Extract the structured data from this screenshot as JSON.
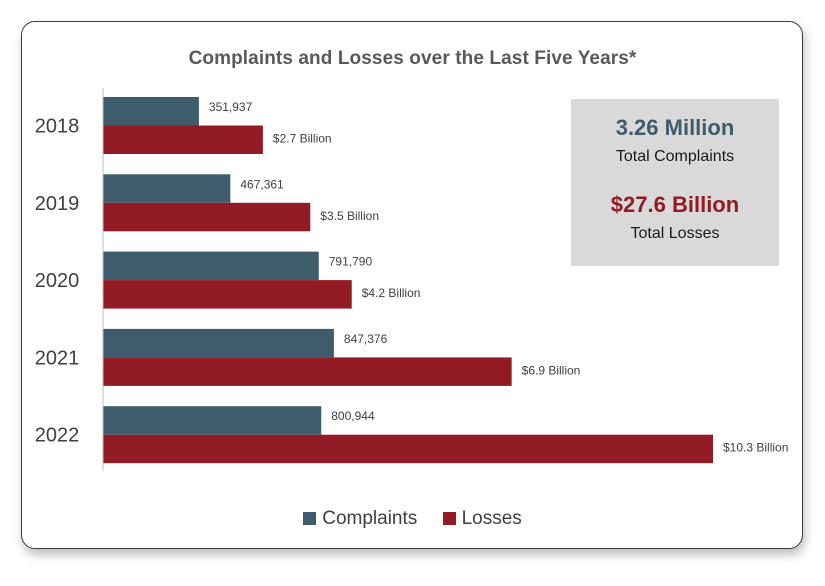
{
  "chart_data": {
    "type": "bar",
    "orientation": "horizontal",
    "title": "Complaints and Losses over the Last Five Years*",
    "categories": [
      "2018",
      "2019",
      "2020",
      "2021",
      "2022"
    ],
    "series": [
      {
        "name": "Complaints",
        "color": "#3e5c6b",
        "values": [
          351937,
          467361,
          791790,
          847376,
          800944
        ],
        "labels": [
          "351,937",
          "467,361",
          "791,790",
          "847,376",
          "800,944"
        ]
      },
      {
        "name": "Losses",
        "color": "#931b25",
        "values": [
          2.7,
          3.5,
          4.2,
          6.9,
          10.3
        ],
        "unit": "Billion USD",
        "labels": [
          "$2.7 Billion",
          "$3.5 Billion",
          "$4.2 Billion",
          "$6.9 Billion",
          "$10.3 Billion"
        ]
      }
    ],
    "legend_position": "bottom",
    "grid": false
  },
  "summary": {
    "complaints_value": "3.26 Million",
    "complaints_caption": "Total Complaints",
    "losses_value": "$27.6 Billion",
    "losses_caption": "Total Losses"
  },
  "legend": {
    "complaints": "Complaints",
    "losses": "Losses"
  }
}
